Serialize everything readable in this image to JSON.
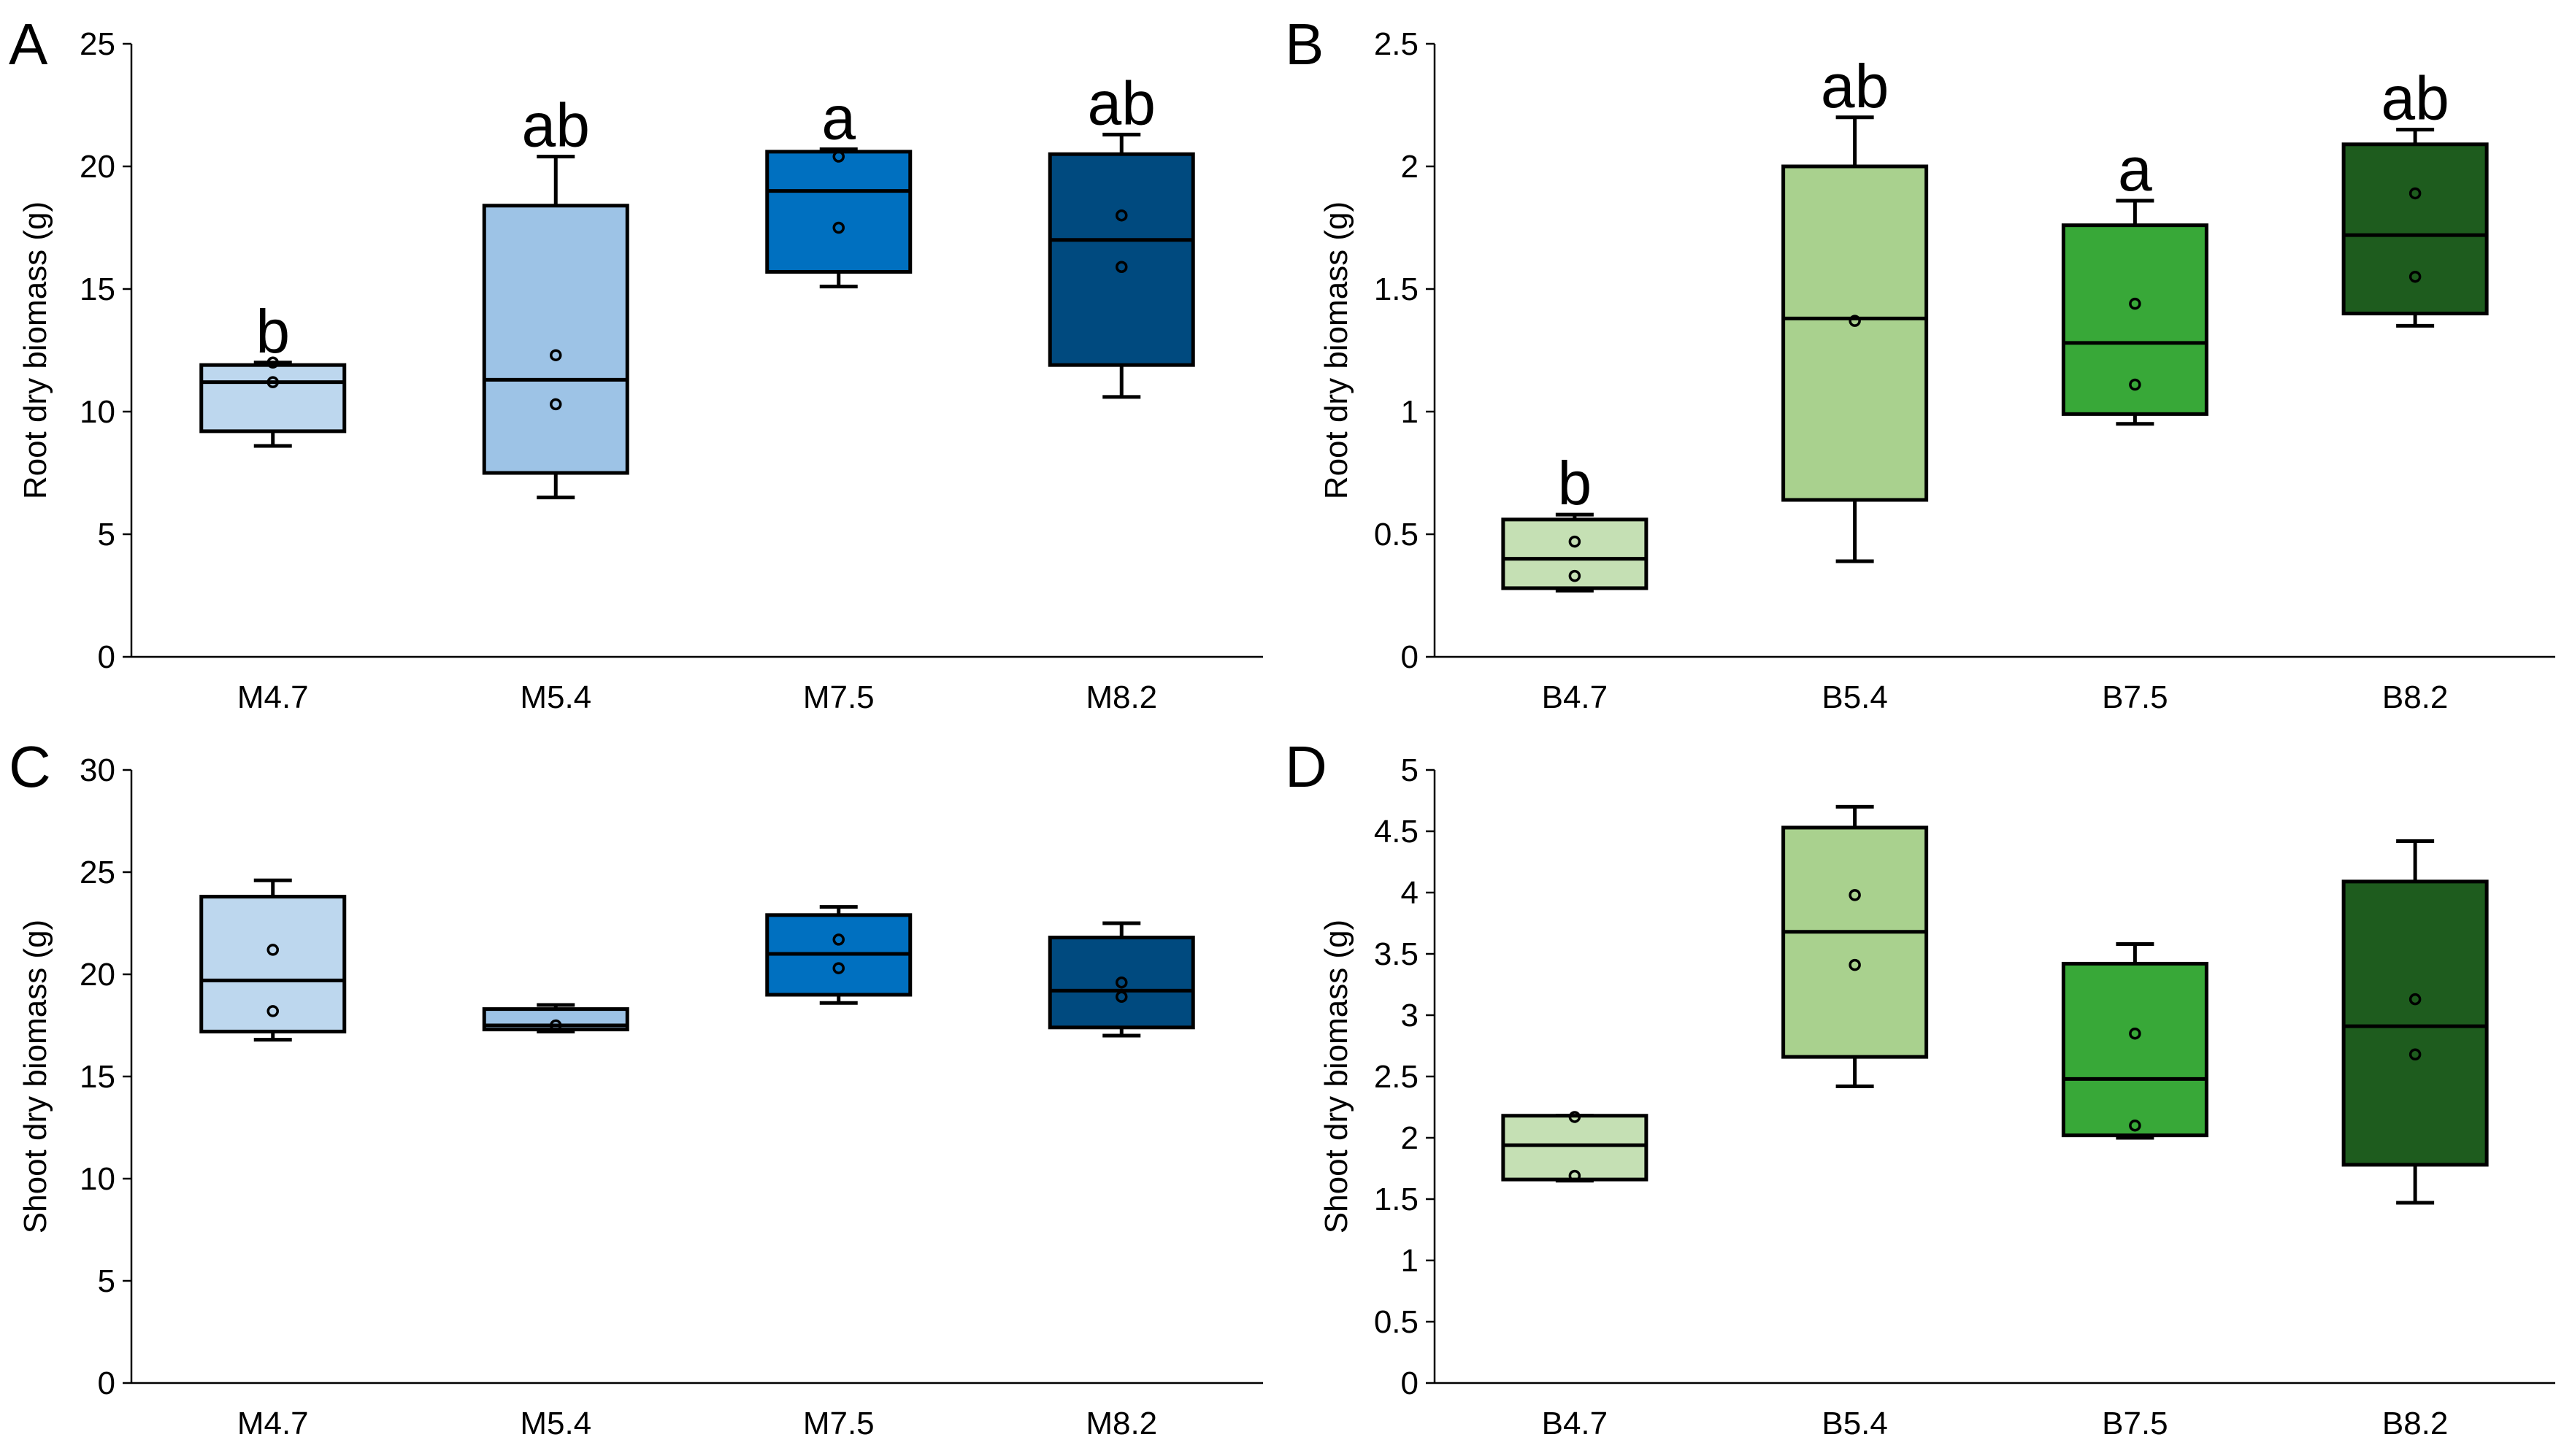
{
  "chart_data": [
    {
      "panel": "A",
      "type": "box",
      "ylabel": "Root dry biomass (g)",
      "ylim": [
        0,
        25
      ],
      "yticks": [
        0,
        5,
        10,
        15,
        20,
        25
      ],
      "categories": [
        "M4.7",
        "M5.4",
        "M7.5",
        "M8.2"
      ],
      "colors": [
        "#BDD7EE",
        "#9DC3E6",
        "#0070C0",
        "#004A7F"
      ],
      "boxes": [
        {
          "min": 8.6,
          "q1": 9.2,
          "median": 11.2,
          "q3": 11.9,
          "max": 12.0,
          "points": [
            11.2,
            12.0
          ],
          "sig": "b"
        },
        {
          "min": 6.5,
          "q1": 7.5,
          "median": 11.3,
          "q3": 18.4,
          "max": 20.4,
          "points": [
            12.3,
            10.3
          ],
          "sig": "ab"
        },
        {
          "min": 15.1,
          "q1": 15.7,
          "median": 19.0,
          "q3": 20.6,
          "max": 20.7,
          "points": [
            20.4,
            17.5
          ],
          "sig": "a"
        },
        {
          "min": 10.6,
          "q1": 11.9,
          "median": 17.0,
          "q3": 20.5,
          "max": 21.3,
          "points": [
            18.0,
            15.9
          ],
          "sig": "ab"
        }
      ]
    },
    {
      "panel": "B",
      "type": "box",
      "ylabel": "Root dry biomass (g)",
      "ylim": [
        0,
        2.5
      ],
      "yticks": [
        0,
        0.5,
        1,
        1.5,
        2,
        2.5
      ],
      "categories": [
        "B4.7",
        "B5.4",
        "B7.5",
        "B8.2"
      ],
      "colors": [
        "#C5E0B4",
        "#A9D18E",
        "#38A838",
        "#1E5C1E"
      ],
      "boxes": [
        {
          "min": 0.27,
          "q1": 0.28,
          "median": 0.4,
          "q3": 0.56,
          "max": 0.58,
          "points": [
            0.47,
            0.33
          ],
          "sig": "b"
        },
        {
          "min": 0.39,
          "q1": 0.64,
          "median": 1.38,
          "q3": 2.0,
          "max": 2.2,
          "points": [
            1.37
          ],
          "sig": "ab"
        },
        {
          "min": 0.95,
          "q1": 0.99,
          "median": 1.28,
          "q3": 1.76,
          "max": 1.86,
          "points": [
            1.44,
            1.11
          ],
          "sig": "a"
        },
        {
          "min": 1.35,
          "q1": 1.4,
          "median": 1.72,
          "q3": 2.09,
          "max": 2.15,
          "points": [
            1.89,
            1.55
          ],
          "sig": "ab"
        }
      ]
    },
    {
      "panel": "C",
      "type": "box",
      "ylabel": "Shoot dry biomass (g)",
      "ylim": [
        0,
        30
      ],
      "yticks": [
        0,
        5,
        10,
        15,
        20,
        25,
        30
      ],
      "categories": [
        "M4.7",
        "M5.4",
        "M7.5",
        "M8.2"
      ],
      "colors": [
        "#BDD7EE",
        "#9DC3E6",
        "#0070C0",
        "#004A7F"
      ],
      "boxes": [
        {
          "min": 16.8,
          "q1": 17.2,
          "median": 19.7,
          "q3": 23.8,
          "max": 24.6,
          "points": [
            21.2,
            18.2
          ],
          "sig": ""
        },
        {
          "min": 17.2,
          "q1": 17.3,
          "median": 17.5,
          "q3": 18.3,
          "max": 18.5,
          "points": [
            17.5
          ],
          "sig": ""
        },
        {
          "min": 18.6,
          "q1": 19.0,
          "median": 21.0,
          "q3": 22.9,
          "max": 23.3,
          "points": [
            21.7,
            20.3
          ],
          "sig": ""
        },
        {
          "min": 17.0,
          "q1": 17.4,
          "median": 19.2,
          "q3": 21.8,
          "max": 22.5,
          "points": [
            19.6,
            18.9
          ],
          "sig": ""
        }
      ]
    },
    {
      "panel": "D",
      "type": "box",
      "ylabel": "Shoot dry biomass (g)",
      "ylim": [
        0,
        5
      ],
      "yticks": [
        0,
        0.5,
        1,
        1.5,
        2,
        2.5,
        3,
        3.5,
        4,
        4.5,
        5
      ],
      "categories": [
        "B4.7",
        "B5.4",
        "B7.5",
        "B8.2"
      ],
      "colors": [
        "#C5E0B4",
        "#A9D18E",
        "#38A838",
        "#1E5C1E"
      ],
      "boxes": [
        {
          "min": 1.65,
          "q1": 1.66,
          "median": 1.94,
          "q3": 2.18,
          "max": 2.18,
          "points": [
            2.17,
            1.69
          ],
          "sig": ""
        },
        {
          "min": 2.42,
          "q1": 2.66,
          "median": 3.68,
          "q3": 4.53,
          "max": 4.7,
          "points": [
            3.98,
            3.41
          ],
          "sig": ""
        },
        {
          "min": 2.0,
          "q1": 2.02,
          "median": 2.48,
          "q3": 3.42,
          "max": 3.58,
          "points": [
            2.85,
            2.1
          ],
          "sig": ""
        },
        {
          "min": 1.47,
          "q1": 1.78,
          "median": 2.91,
          "q3": 4.09,
          "max": 4.42,
          "points": [
            3.13,
            2.68
          ],
          "sig": ""
        }
      ]
    }
  ]
}
